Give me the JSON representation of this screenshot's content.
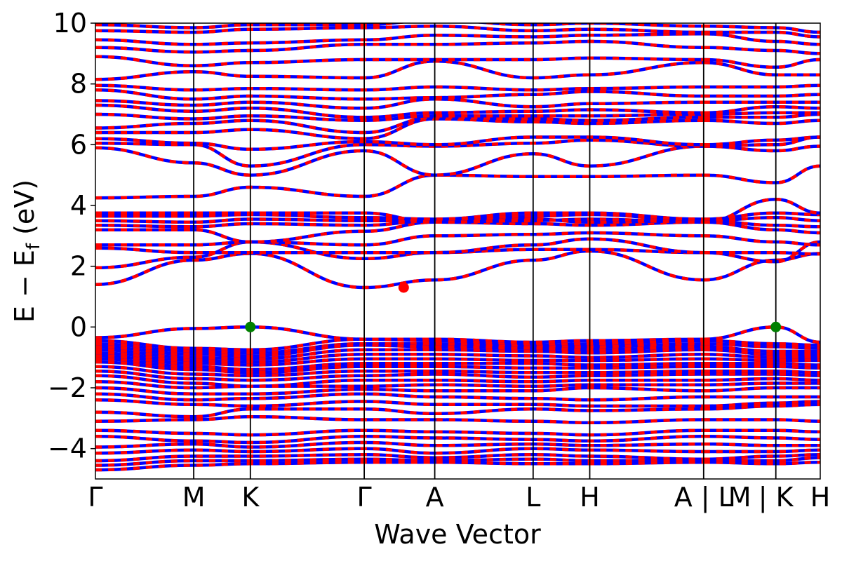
{
  "chart_data": {
    "type": "line",
    "title": "",
    "xlabel": "Wave Vector",
    "ylabel_parts": {
      "main": "E − E",
      "sub": "f",
      "unit": " (eV)"
    },
    "ylim": [
      -5,
      10
    ],
    "yticks": [
      -4,
      -2,
      0,
      2,
      4,
      6,
      8,
      10
    ],
    "ytick_labels": [
      "−4",
      "−2",
      "0",
      "2",
      "4",
      "6",
      "8",
      "10"
    ],
    "grid": false,
    "legend": "none",
    "xlim": [
      0,
      13.05
    ],
    "kpoints": [
      {
        "x": 0.0,
        "label": "Γ",
        "line": false
      },
      {
        "x": 1.77,
        "label": "M",
        "line": true
      },
      {
        "x": 2.79,
        "label": "K",
        "line": true
      },
      {
        "x": 4.84,
        "label": "Γ",
        "line": true
      },
      {
        "x": 6.11,
        "label": "A",
        "line": true
      },
      {
        "x": 7.88,
        "label": "L",
        "line": true
      },
      {
        "x": 8.9,
        "label": "H",
        "line": true
      },
      {
        "x": 10.95,
        "label": "A | L",
        "line": true
      },
      {
        "x": 11.6,
        "label": "M",
        "line": false
      },
      {
        "x": 12.25,
        "label": "| K",
        "line": true
      },
      {
        "x": 13.05,
        "label": "H",
        "line": false
      }
    ],
    "segments": [
      {
        "x0": 0.0,
        "x1": 1.77
      },
      {
        "x0": 1.77,
        "x1": 2.79
      },
      {
        "x0": 2.79,
        "x1": 4.84
      },
      {
        "x0": 4.84,
        "x1": 6.11
      },
      {
        "x0": 6.11,
        "x1": 7.88
      },
      {
        "x0": 7.88,
        "x1": 8.9
      },
      {
        "x0": 8.9,
        "x1": 10.95
      },
      {
        "x0": 10.95,
        "x1": 12.25
      },
      {
        "x0": 12.25,
        "x1": 13.05
      }
    ],
    "series": [
      {
        "id": "spin-up",
        "color": "#0000ff"
      },
      {
        "id": "spin-down",
        "color": "#ff0000",
        "dash": [
          9,
          9
        ]
      }
    ],
    "conduction_bands": [
      [
        1.4,
        2.2,
        2.42,
        1.3,
        1.55,
        2.2,
        2.5,
        1.55,
        2.2,
        2.42
      ],
      [
        1.95,
        2.3,
        2.8,
        2.25,
        2.45,
        2.55,
        2.55,
        2.45,
        2.15,
        2.8
      ],
      [
        2.6,
        2.45,
        2.45,
        2.45,
        2.45,
        2.7,
        2.9,
        2.45,
        2.45,
        2.4
      ],
      [
        2.7,
        2.7,
        2.8,
        2.7,
        3.0,
        3.05,
        3.1,
        3.0,
        2.8,
        2.7
      ],
      [
        3.2,
        3.2,
        2.8,
        3.15,
        3.45,
        3.4,
        3.35,
        3.45,
        3.2,
        3.1
      ],
      [
        3.35,
        3.3,
        3.4,
        3.35,
        3.5,
        3.55,
        3.45,
        3.5,
        3.35,
        3.3
      ],
      [
        3.5,
        3.45,
        3.55,
        3.5,
        3.5,
        3.65,
        3.7,
        3.5,
        3.6,
        3.5
      ],
      [
        3.65,
        3.65,
        3.7,
        3.6,
        3.55,
        3.75,
        3.75,
        3.55,
        3.75,
        3.7
      ],
      [
        3.75,
        3.75,
        3.75,
        3.75,
        3.45,
        3.5,
        3.55,
        3.45,
        4.2,
        3.75
      ],
      [
        4.25,
        4.3,
        4.6,
        4.3,
        5.0,
        4.95,
        4.95,
        5.0,
        4.75,
        5.3
      ],
      [
        5.9,
        5.4,
        5.0,
        5.8,
        5.0,
        5.7,
        5.3,
        5.95,
        5.8,
        5.95
      ],
      [
        6.05,
        6.0,
        5.3,
        6.0,
        5.95,
        6.05,
        6.15,
        5.95,
        6.0,
        6.25
      ],
      [
        6.2,
        6.05,
        5.85,
        6.1,
        6.0,
        6.25,
        6.25,
        6.0,
        6.15,
        6.25
      ],
      [
        6.4,
        6.4,
        6.5,
        6.2,
        6.85,
        6.75,
        6.7,
        6.8,
        6.7,
        6.8
      ],
      [
        6.55,
        6.7,
        6.8,
        6.4,
        6.9,
        6.85,
        6.8,
        6.9,
        6.9,
        7.0
      ],
      [
        7.0,
        6.85,
        6.95,
        6.8,
        6.95,
        6.95,
        6.95,
        7.0,
        7.05,
        7.05
      ],
      [
        7.3,
        7.1,
        7.2,
        6.9,
        7.05,
        7.1,
        7.15,
        7.05,
        7.25,
        7.2
      ],
      [
        7.45,
        7.3,
        7.4,
        7.2,
        7.5,
        7.25,
        7.35,
        7.4,
        7.4,
        7.4
      ],
      [
        7.8,
        7.5,
        7.6,
        7.5,
        7.55,
        7.65,
        7.75,
        7.6,
        7.6,
        7.65
      ],
      [
        7.95,
        7.8,
        7.85,
        7.8,
        7.9,
        7.8,
        7.85,
        7.9,
        7.9,
        7.95
      ],
      [
        8.15,
        8.4,
        8.25,
        8.2,
        8.75,
        8.2,
        8.3,
        8.7,
        8.3,
        8.3
      ],
      [
        8.9,
        8.6,
        8.7,
        8.8,
        8.8,
        8.8,
        8.85,
        8.8,
        8.55,
        8.8
      ],
      [
        9.2,
        9.05,
        9.1,
        9.3,
        9.3,
        9.35,
        9.4,
        9.2,
        9.1,
        9.0
      ],
      [
        9.45,
        9.3,
        9.35,
        9.45,
        9.6,
        9.55,
        9.6,
        9.65,
        9.4,
        9.3
      ],
      [
        9.75,
        9.7,
        9.8,
        9.85,
        9.9,
        9.75,
        9.8,
        9.7,
        9.7,
        9.55
      ],
      [
        9.95,
        9.85,
        9.95,
        9.95,
        10.1,
        9.95,
        10.0,
        9.9,
        9.85,
        9.7
      ]
    ],
    "valence_bands": [
      [
        -0.35,
        -0.05,
        0.0,
        -0.4,
        -0.4,
        -0.5,
        -0.45,
        -0.4,
        0.0,
        -0.5
      ],
      [
        -0.45,
        -0.7,
        -0.75,
        -0.4,
        -0.45,
        -0.6,
        -0.55,
        -0.45,
        -0.55,
        -0.6
      ],
      [
        -0.55,
        -0.8,
        -0.85,
        -0.55,
        -0.55,
        -0.65,
        -0.65,
        -0.55,
        -0.65,
        -0.7
      ],
      [
        -0.65,
        -0.9,
        -0.95,
        -0.6,
        -0.65,
        -0.7,
        -0.75,
        -0.65,
        -0.8,
        -0.8
      ],
      [
        -0.75,
        -1.0,
        -1.05,
        -0.75,
        -0.75,
        -0.8,
        -0.85,
        -0.75,
        -0.9,
        -0.9
      ],
      [
        -0.85,
        -1.1,
        -1.15,
        -0.9,
        -0.9,
        -0.95,
        -1.0,
        -0.9,
        -1.0,
        -1.0
      ],
      [
        -0.95,
        -1.2,
        -1.25,
        -1.05,
        -1.05,
        -1.1,
        -1.1,
        -1.05,
        -1.1,
        -1.1
      ],
      [
        -1.05,
        -1.3,
        -1.4,
        -1.2,
        -1.2,
        -1.2,
        -1.25,
        -1.2,
        -1.2,
        -1.25
      ],
      [
        -1.15,
        -1.4,
        -1.5,
        -1.3,
        -1.3,
        -1.35,
        -1.35,
        -1.3,
        -1.3,
        -1.35
      ],
      [
        -1.3,
        -1.55,
        -1.6,
        -1.45,
        -1.45,
        -1.5,
        -1.5,
        -1.45,
        -1.45,
        -1.5
      ],
      [
        -1.45,
        -1.7,
        -1.75,
        -1.6,
        -1.55,
        -1.65,
        -1.6,
        -1.55,
        -1.55,
        -1.6
      ],
      [
        -1.6,
        -1.85,
        -1.95,
        -1.75,
        -1.75,
        -1.8,
        -1.75,
        -1.75,
        -1.7,
        -1.75
      ],
      [
        -1.8,
        -2.0,
        -1.95,
        -1.95,
        -1.9,
        -1.95,
        -1.9,
        -1.9,
        -1.85,
        -1.85
      ],
      [
        -2.0,
        -2.2,
        -2.2,
        -2.05,
        -2.1,
        -2.1,
        -2.0,
        -2.1,
        -2.0,
        -2.0
      ],
      [
        -2.2,
        -2.4,
        -2.35,
        -2.2,
        -2.3,
        -2.35,
        -2.4,
        -2.3,
        -2.3,
        -2.3
      ],
      [
        -2.4,
        -2.55,
        -2.6,
        -2.45,
        -2.55,
        -2.55,
        -2.6,
        -2.6,
        -2.5,
        -2.45
      ],
      [
        -2.8,
        -2.95,
        -2.7,
        -2.7,
        -2.85,
        -2.7,
        -2.75,
        -2.7,
        -2.6,
        -2.55
      ],
      [
        -3.1,
        -3.05,
        -2.95,
        -3.05,
        -3.05,
        -3.1,
        -3.15,
        -3.05,
        -3.05,
        -3.1
      ],
      [
        -3.4,
        -3.5,
        -3.55,
        -3.4,
        -3.45,
        -3.5,
        -3.55,
        -3.4,
        -3.4,
        -3.45
      ],
      [
        -3.6,
        -3.75,
        -3.8,
        -3.6,
        -3.65,
        -3.7,
        -3.75,
        -3.6,
        -3.65,
        -3.7
      ],
      [
        -3.95,
        -3.85,
        -3.95,
        -3.8,
        -3.9,
        -3.85,
        -3.9,
        -3.85,
        -3.9,
        -3.9
      ],
      [
        -4.15,
        -4.05,
        -4.1,
        -4.0,
        -4.15,
        -4.0,
        -4.05,
        -4.1,
        -4.1,
        -4.05
      ],
      [
        -4.4,
        -4.25,
        -4.25,
        -4.2,
        -4.3,
        -4.2,
        -4.25,
        -4.35,
        -4.25,
        -4.2
      ],
      [
        -4.55,
        -4.4,
        -4.4,
        -4.35,
        -4.4,
        -4.35,
        -4.4,
        -4.4,
        -4.4,
        -4.3
      ],
      [
        -4.7,
        -4.55,
        -4.5,
        -4.45,
        -4.45,
        -4.5,
        -4.5,
        -4.45,
        -4.5,
        -4.45
      ]
    ],
    "markers": [
      {
        "name": "vbm-marker-k",
        "x": 2.79,
        "y": 0.0,
        "color": "#008000"
      },
      {
        "name": "vbm-marker-k2",
        "x": 12.25,
        "y": 0.0,
        "color": "#008000"
      },
      {
        "name": "cbm-marker",
        "x": 5.55,
        "y": 1.3,
        "color": "#ff0000"
      }
    ]
  }
}
